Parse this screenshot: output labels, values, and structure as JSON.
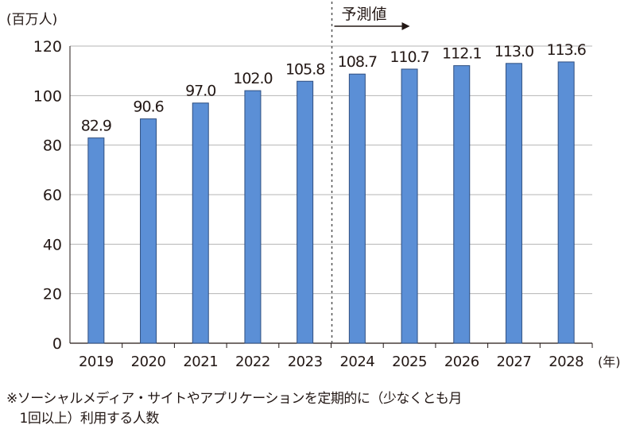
{
  "chart_data": {
    "type": "bar",
    "title": "",
    "ylabel": "(百万人)",
    "xlabel": "(年)",
    "ylim": [
      0,
      120
    ],
    "yticks": [
      0,
      20,
      40,
      60,
      80,
      100,
      120
    ],
    "grid": true,
    "categories": [
      "2019",
      "2020",
      "2021",
      "2022",
      "2023",
      "2024",
      "2025",
      "2026",
      "2027",
      "2028"
    ],
    "values": [
      82.9,
      90.6,
      97.0,
      102.0,
      105.8,
      108.7,
      110.7,
      112.1,
      113.0,
      113.6
    ],
    "value_labels": [
      "82.9",
      "90.6",
      "97.0",
      "102.0",
      "105.8",
      "108.7",
      "110.7",
      "112.1",
      "113.0",
      "113.6"
    ],
    "forecast_label": "予測値",
    "forecast_start": "2024",
    "bar_color": "#5b8fd6",
    "bar_border": "#2f4f80"
  },
  "notes": {
    "line1": "※ソーシャルメディア・サイトやアプリケーションを定期的に（少なくとも月",
    "line2": "　1回以上）利用する人数"
  }
}
